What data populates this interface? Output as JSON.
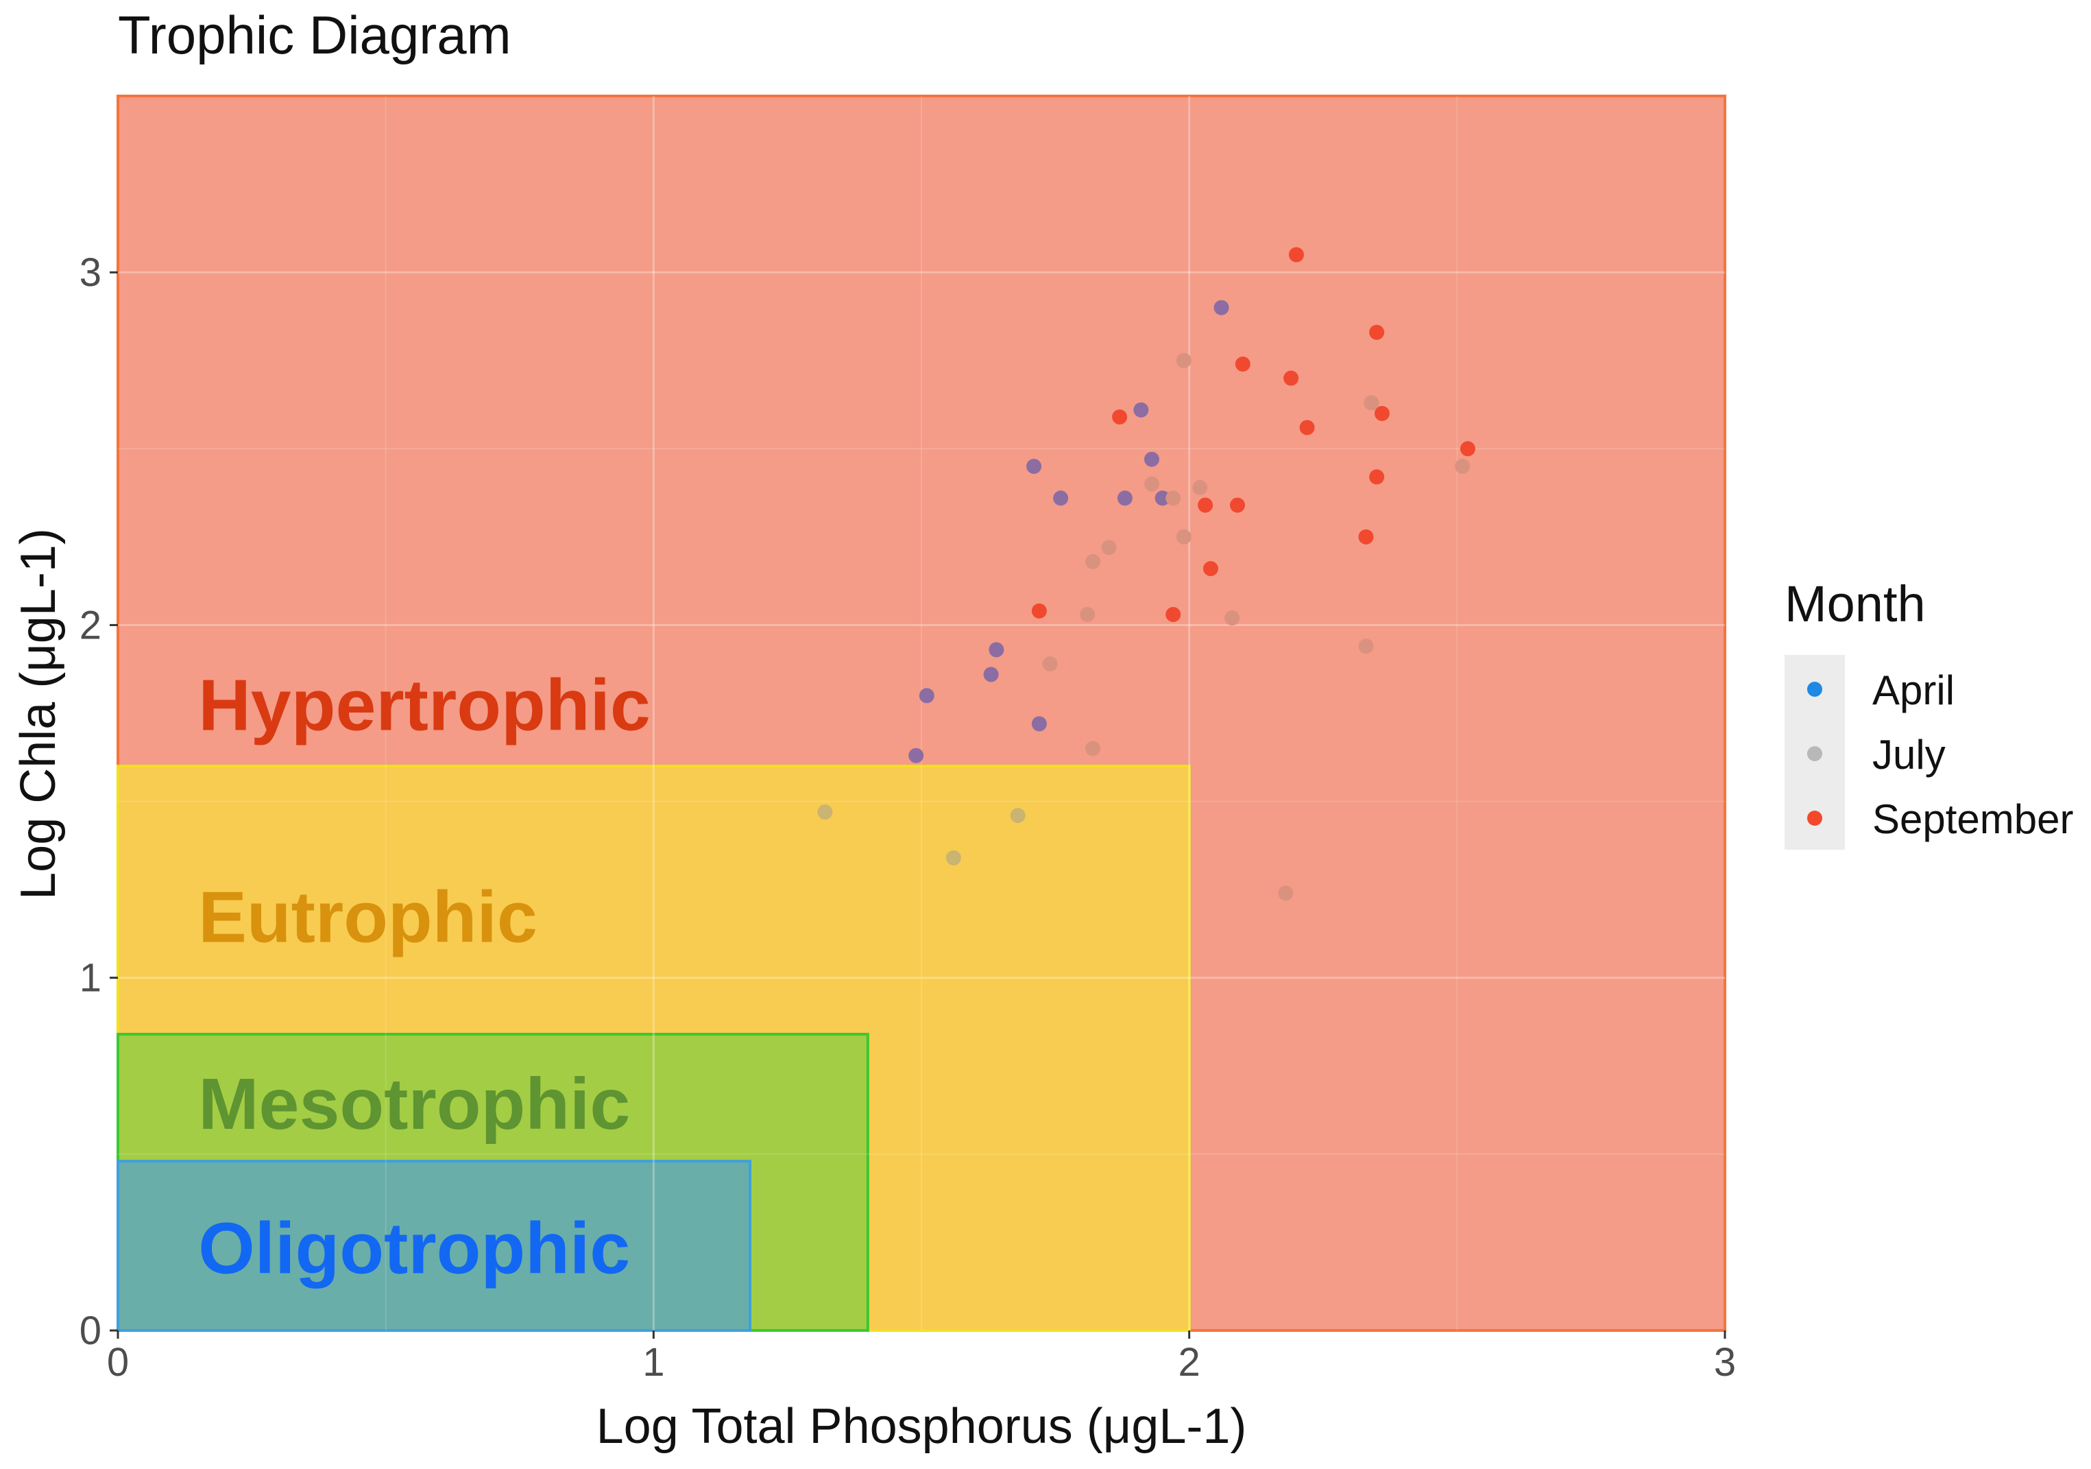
{
  "chart_data": {
    "type": "scatter",
    "title": "Trophic Diagram",
    "xlabel": "Log Total Phosphorus (μgL-1)",
    "ylabel": "Log Chla (μgL-1)",
    "xlim": [
      0,
      3
    ],
    "ylim": [
      0,
      3.5
    ],
    "x_ticks": [
      "0",
      "1",
      "2",
      "3"
    ],
    "y_ticks": [
      "0",
      "1",
      "2",
      "3"
    ],
    "grid": true,
    "legend": {
      "title": "Month",
      "position": "right",
      "items": [
        {
          "label": "April",
          "color": "#1e88e5"
        },
        {
          "label": "July",
          "color": "#b8b8b8"
        },
        {
          "label": "September",
          "color": "#f4482c"
        }
      ]
    },
    "zones": [
      {
        "label": "Hypertrophic",
        "xmax": 3.0,
        "ymax": 3.5,
        "fill": "#f49c87",
        "stroke": "#f5743e",
        "text_color": "#d93a12"
      },
      {
        "label": "Eutrophic",
        "xmax": 2.0,
        "ymax": 1.6,
        "fill": "#f8cc50",
        "stroke": "#f2e020",
        "text_color": "#d8920e"
      },
      {
        "label": "Mesotrophic",
        "xmax": 1.4,
        "ymax": 0.84,
        "fill": "#a3cd44",
        "stroke": "#3cc832",
        "text_color": "#5e9432"
      },
      {
        "label": "Oligotrophic",
        "xmax": 1.18,
        "ymax": 0.48,
        "fill": "#6aaea9",
        "stroke": "#3fa0dc",
        "text_color": "#1268f2"
      }
    ],
    "series": [
      {
        "name": "April",
        "color": "#8b6da3",
        "points": [
          [
            2.06,
            2.9
          ],
          [
            1.91,
            2.61
          ],
          [
            1.93,
            2.47
          ],
          [
            1.71,
            2.45
          ],
          [
            1.76,
            2.36
          ],
          [
            1.88,
            2.36
          ],
          [
            1.95,
            2.36
          ],
          [
            1.64,
            1.93
          ],
          [
            1.63,
            1.86
          ],
          [
            1.51,
            1.8
          ],
          [
            1.72,
            1.72
          ],
          [
            1.49,
            1.63
          ]
        ]
      },
      {
        "name": "July",
        "color": "#d9927f",
        "points": [
          [
            1.99,
            2.75
          ],
          [
            2.34,
            2.63
          ],
          [
            2.51,
            2.45
          ],
          [
            1.93,
            2.4
          ],
          [
            2.02,
            2.39
          ],
          [
            1.97,
            2.36
          ],
          [
            1.99,
            2.25
          ],
          [
            1.85,
            2.22
          ],
          [
            1.82,
            2.18
          ],
          [
            1.81,
            2.03
          ],
          [
            2.08,
            2.02
          ],
          [
            2.33,
            1.94
          ],
          [
            1.74,
            1.89
          ],
          [
            1.82,
            1.65
          ],
          [
            2.18,
            1.24
          ]
        ]
      },
      {
        "name": "July",
        "color": "#c9b471",
        "points": [
          [
            1.32,
            1.47
          ],
          [
            1.68,
            1.46
          ],
          [
            1.56,
            1.34
          ]
        ]
      },
      {
        "name": "September",
        "color": "#f0492f",
        "points": [
          [
            2.2,
            3.05
          ],
          [
            2.35,
            2.83
          ],
          [
            2.1,
            2.74
          ],
          [
            2.19,
            2.7
          ],
          [
            1.87,
            2.59
          ],
          [
            2.22,
            2.56
          ],
          [
            2.36,
            2.6
          ],
          [
            2.52,
            2.5
          ],
          [
            2.35,
            2.42
          ],
          [
            2.03,
            2.34
          ],
          [
            2.09,
            2.34
          ],
          [
            2.33,
            2.25
          ],
          [
            2.04,
            2.16
          ],
          [
            1.72,
            2.04
          ],
          [
            1.97,
            2.03
          ]
        ]
      }
    ]
  }
}
